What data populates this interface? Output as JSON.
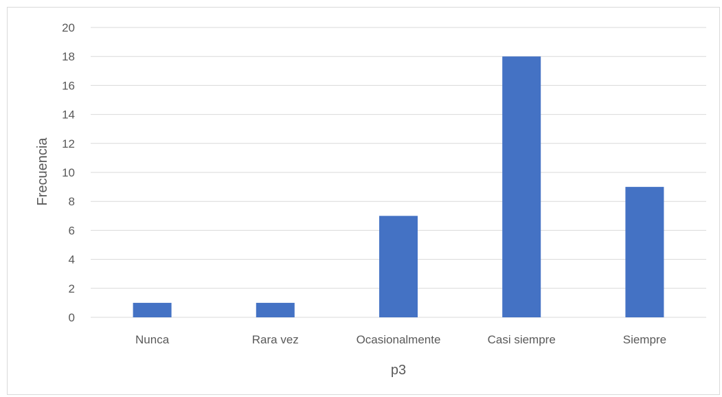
{
  "chart_data": {
    "type": "bar",
    "title": "",
    "xlabel": "p3",
    "ylabel": "Frecuencia",
    "categories": [
      "Nunca",
      "Rara vez",
      "Ocasionalmente",
      "Casi siempre",
      "Siempre"
    ],
    "values": [
      1,
      1,
      7,
      18,
      9
    ],
    "ylim": [
      0,
      20
    ],
    "yticks": [
      "0",
      "2",
      "4",
      "6",
      "8",
      "10",
      "12",
      "14",
      "16",
      "18",
      "20"
    ],
    "grid": true,
    "legend": "none",
    "bar_color": "#4472c4",
    "grid_color": "#d9d9d9",
    "text_color": "#595959"
  }
}
